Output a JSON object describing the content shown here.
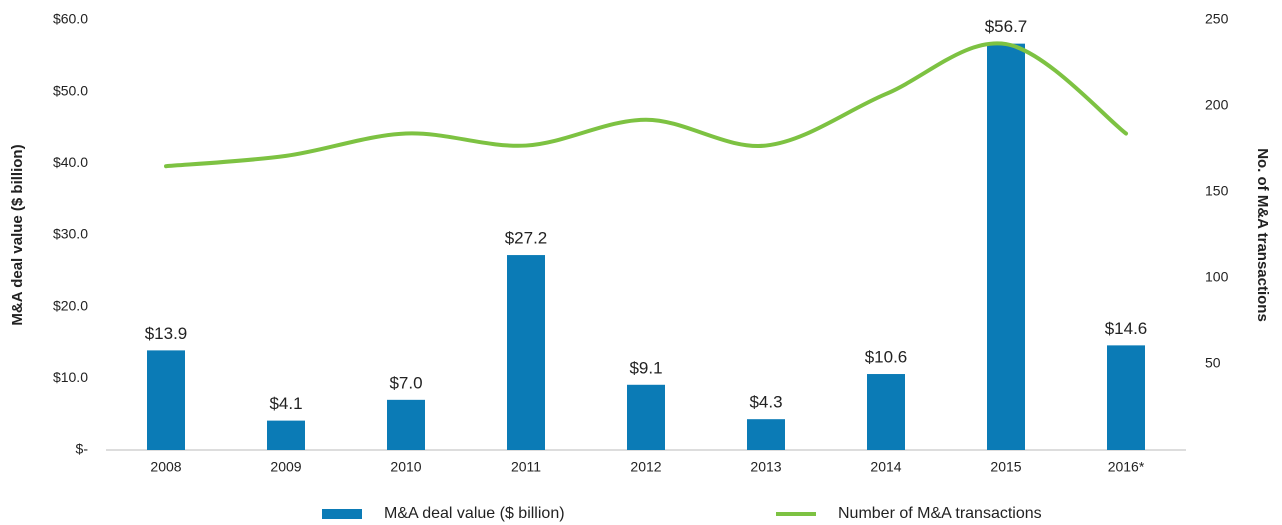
{
  "chart_data": {
    "type": "bar",
    "categories": [
      "2008",
      "2009",
      "2010",
      "2011",
      "2012",
      "2013",
      "2014",
      "2015",
      "2016*"
    ],
    "y_label": "M&A deal value ($ billion)",
    "y2_label": "No. of M&A transactions",
    "series": [
      {
        "name": "M&A deal value ($ billion)",
        "type": "bar",
        "color": "#0b7bb6",
        "values": [
          13.9,
          4.1,
          7.0,
          27.2,
          9.1,
          4.3,
          10.6,
          56.7,
          14.6
        ],
        "value_labels": [
          "$13.9",
          "$4.1",
          "$7.0",
          "$27.2",
          "$9.1",
          "$4.3",
          "$10.6",
          "$56.7",
          "$14.6"
        ]
      },
      {
        "name": "Number of M&A transactions",
        "type": "line",
        "axis": "y2",
        "color": "#7dc242",
        "values": [
          165,
          171,
          184,
          177,
          192,
          177,
          207,
          236,
          184
        ]
      }
    ],
    "ylim": [
      0,
      60
    ],
    "yticks": [
      {
        "value": 0,
        "label": "$-"
      },
      {
        "value": 10,
        "label": "$10.0"
      },
      {
        "value": 20,
        "label": "$20.0"
      },
      {
        "value": 30,
        "label": "$30.0"
      },
      {
        "value": 40,
        "label": "$40.0"
      },
      {
        "value": 50,
        "label": "$50.0"
      },
      {
        "value": 60,
        "label": "$60.0"
      }
    ],
    "y2lim": [
      0,
      250
    ],
    "y2ticks": [
      50,
      100,
      150,
      200,
      250
    ],
    "legend": "bottom"
  }
}
